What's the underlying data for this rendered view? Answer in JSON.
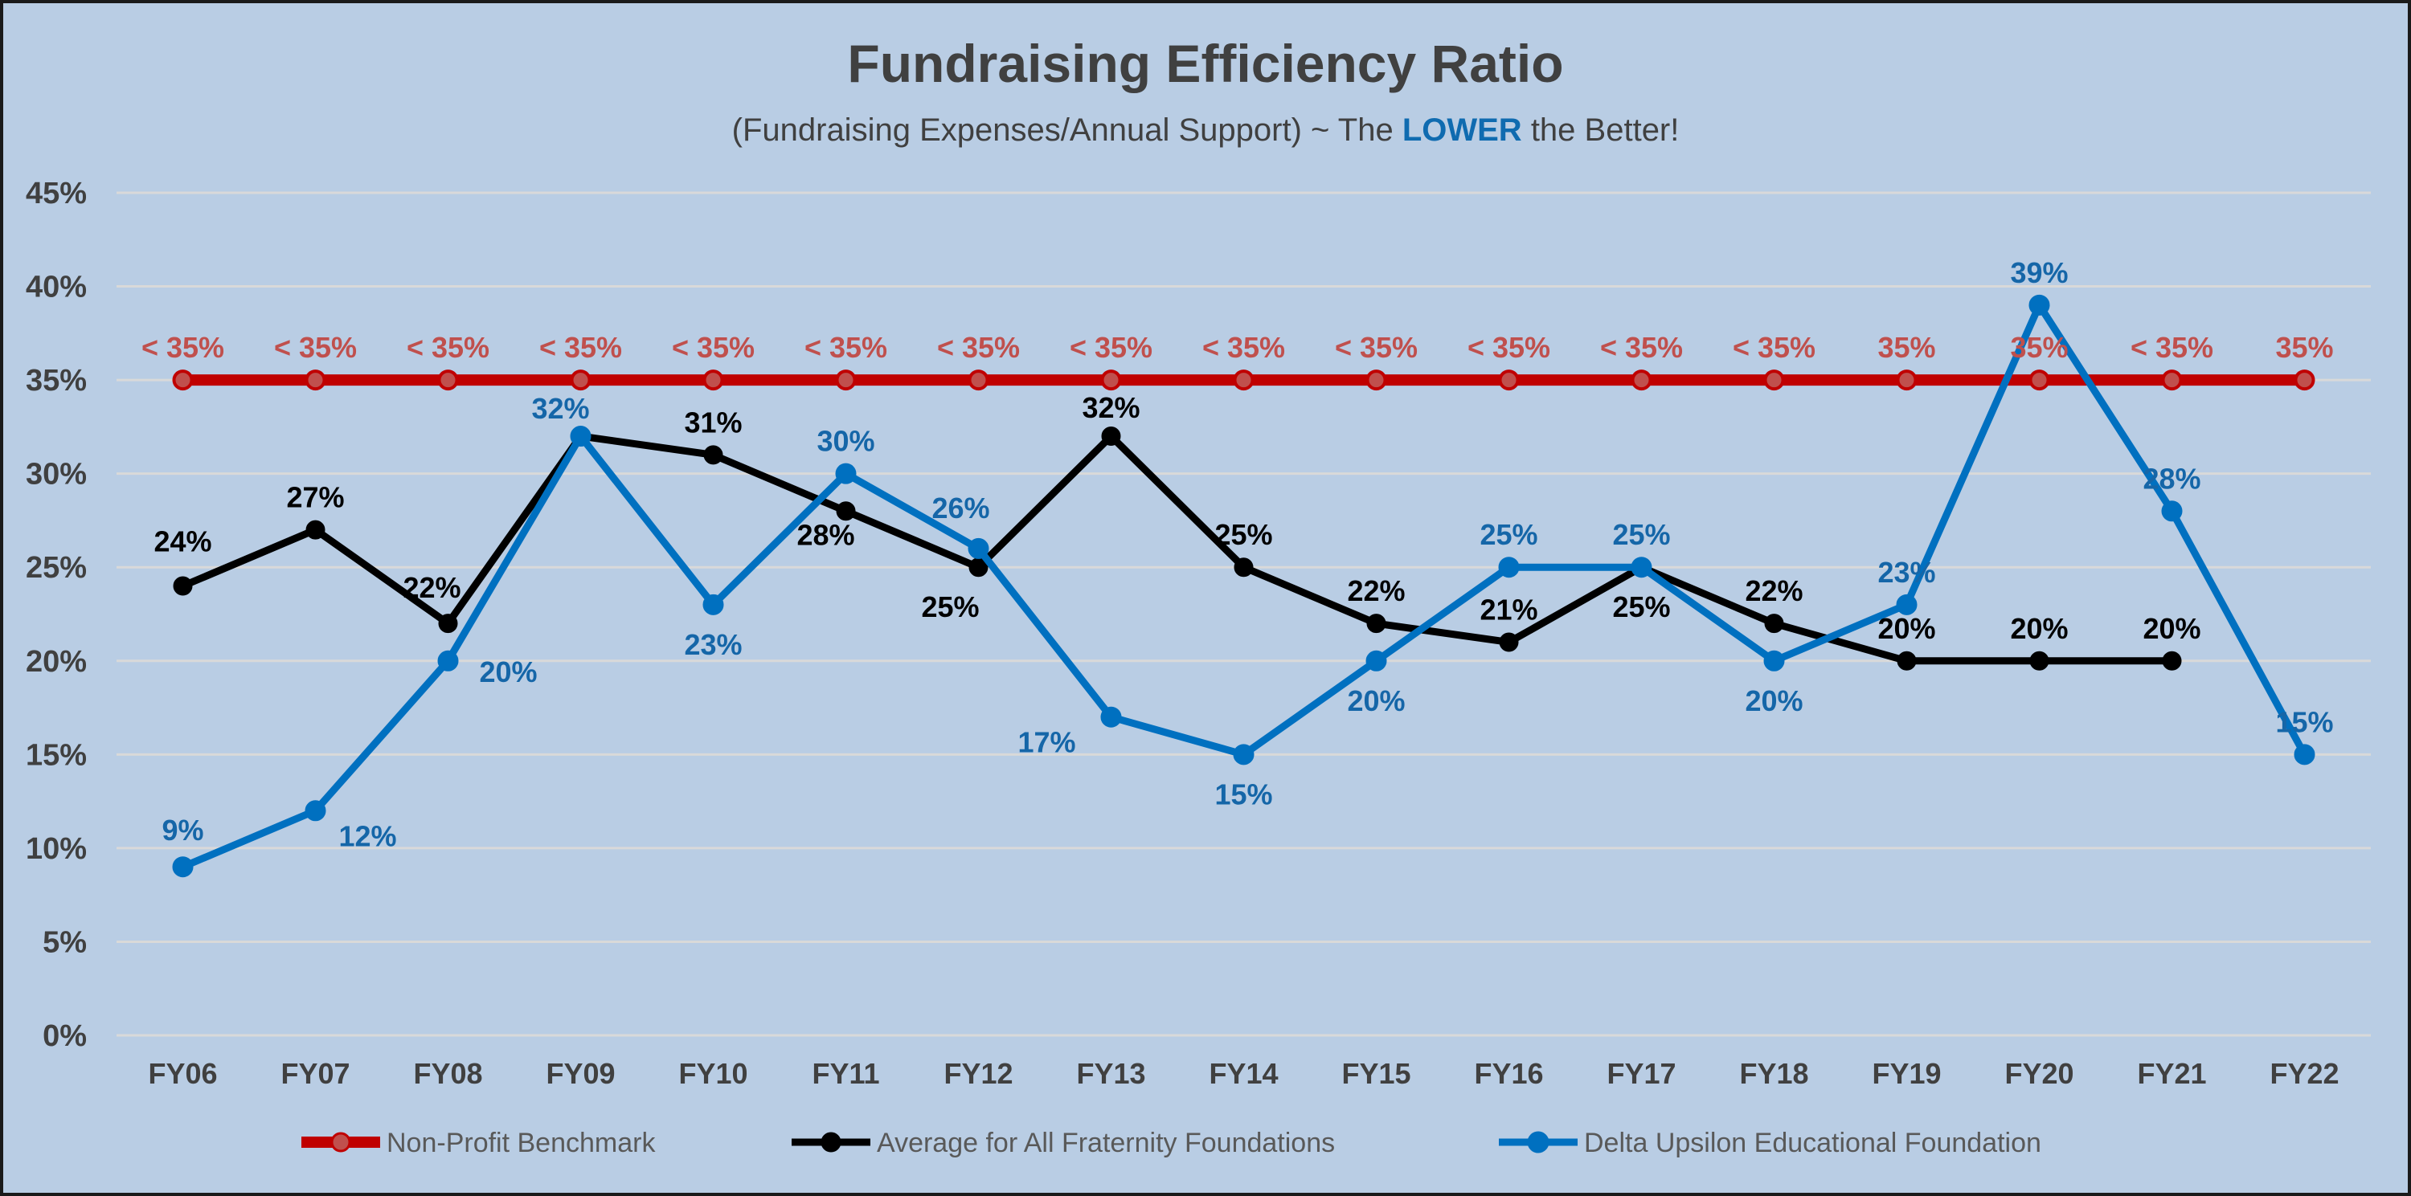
{
  "chart_data": {
    "type": "line",
    "title": "Fundraising Efficiency Ratio",
    "subtitle": {
      "before": "(Fundraising Expenses/Annual Support) ~ The ",
      "emphasis": "LOWER",
      "after": " the Better!"
    },
    "categories": [
      "FY06",
      "FY07",
      "FY08",
      "FY09",
      "FY10",
      "FY11",
      "FY12",
      "FY13",
      "FY14",
      "FY15",
      "FY16",
      "FY17",
      "FY18",
      "FY19",
      "FY20",
      "FY21",
      "FY22"
    ],
    "ylim": [
      0,
      45
    ],
    "yticks": [
      "0%",
      "5%",
      "10%",
      "15%",
      "20%",
      "25%",
      "30%",
      "35%",
      "40%",
      "45%"
    ],
    "grid": true,
    "legend_position": "bottom",
    "series": [
      {
        "name": "Non-Profit Benchmark",
        "color": "#C00000",
        "marker_color": "#C0504D",
        "label_color": "#C0504D",
        "values": [
          35,
          35,
          35,
          35,
          35,
          35,
          35,
          35,
          35,
          35,
          35,
          35,
          35,
          35,
          35,
          35,
          35
        ],
        "labels": [
          "< 35%",
          "< 35%",
          "< 35%",
          "< 35%",
          "< 35%",
          "< 35%",
          "< 35%",
          "< 35%",
          "< 35%",
          "< 35%",
          "< 35%",
          "< 35%",
          "< 35%",
          "35%",
          "35%",
          "< 35%",
          "35%"
        ]
      },
      {
        "name": "Average for All Fraternity Foundations",
        "color": "#000000",
        "marker_color": "#000000",
        "label_color": "#000000",
        "values": [
          24,
          27,
          22,
          32,
          31,
          28,
          25,
          32,
          25,
          22,
          21,
          25,
          22,
          20,
          20,
          20,
          null
        ],
        "labels": [
          "24%",
          "27%",
          "22%",
          null,
          "31%",
          "28%",
          "25%",
          "32%",
          "25%",
          "22%",
          "21%",
          "25%",
          "22%",
          "20%",
          "20%",
          "20%",
          null
        ]
      },
      {
        "name": "Delta Upsilon Educational Foundation",
        "color": "#0070C0",
        "marker_color": "#0070C0",
        "label_color": "#1566A8",
        "values": [
          9,
          12,
          20,
          32,
          23,
          30,
          26,
          17,
          15,
          20,
          25,
          25,
          20,
          23,
          39,
          28,
          15
        ],
        "labels": [
          "9%",
          "12%",
          "20%",
          "32%",
          "23%",
          "30%",
          "26%",
          "17%",
          "15%",
          "20%",
          "25%",
          "25%",
          "20%",
          "23%",
          "39%",
          "28%",
          "15%"
        ]
      }
    ]
  }
}
